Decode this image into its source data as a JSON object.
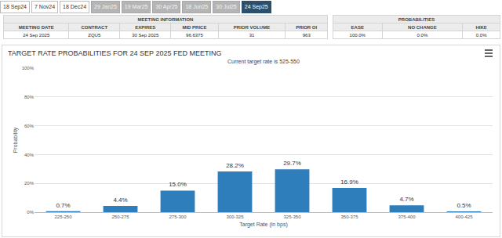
{
  "tabs": {
    "items": [
      "18 Sep24",
      "7 Nov24",
      "18 Dec24",
      "29 Jan25",
      "19 Mar25",
      "30 Apr25",
      "18 Jun25",
      "30 Jul25",
      "24 Sep25"
    ],
    "active": "24 Sep25"
  },
  "meeting_information": {
    "title": "MEETING INFORMATION",
    "columns": [
      "MEETING DATE",
      "CONTRACT",
      "EXPIRES",
      "MID PRICE",
      "PRIOR VOLUME",
      "PRIOR OI"
    ],
    "row": [
      "24 Sep 2025",
      "ZQU5",
      "30 Sep 2025",
      "96.6375",
      "31",
      "963"
    ]
  },
  "probabilities": {
    "title": "PROBABILITIES",
    "columns": [
      "EASE",
      "NO CHANGE",
      "HIKE"
    ],
    "row": [
      "100.0%",
      "0.0%",
      "0.0%"
    ]
  },
  "chart_data": {
    "type": "bar",
    "title": "TARGET RATE PROBABILITIES FOR 24 SEP 2025 FED MEETING",
    "subtitle": "Current target rate is 525-550",
    "x_label": "Target Rate (in bps)",
    "y_label": "Probability",
    "categories": [
      "225-250",
      "250-275",
      "275-300",
      "300-325",
      "325-350",
      "350-375",
      "375-400",
      "400-425"
    ],
    "values": [
      0.7,
      4.4,
      15.0,
      28.2,
      29.7,
      16.9,
      4.7,
      0.5
    ],
    "value_labels": [
      "0.7%",
      "4.4%",
      "15.0%",
      "28.2%",
      "29.7%",
      "16.9%",
      "4.7%",
      "0.5%"
    ],
    "color": "#2f7ebc",
    "ylim": [
      0,
      100
    ],
    "yticks": [
      {
        "value": 0,
        "label": "0%"
      },
      {
        "value": 20,
        "label": "20%"
      },
      {
        "value": 40,
        "label": "40%"
      },
      {
        "value": 60,
        "label": "60%"
      },
      {
        "value": 80,
        "label": "80%"
      },
      {
        "value": 100,
        "label": "100%"
      }
    ],
    "grid": true,
    "data_labels": true
  }
}
